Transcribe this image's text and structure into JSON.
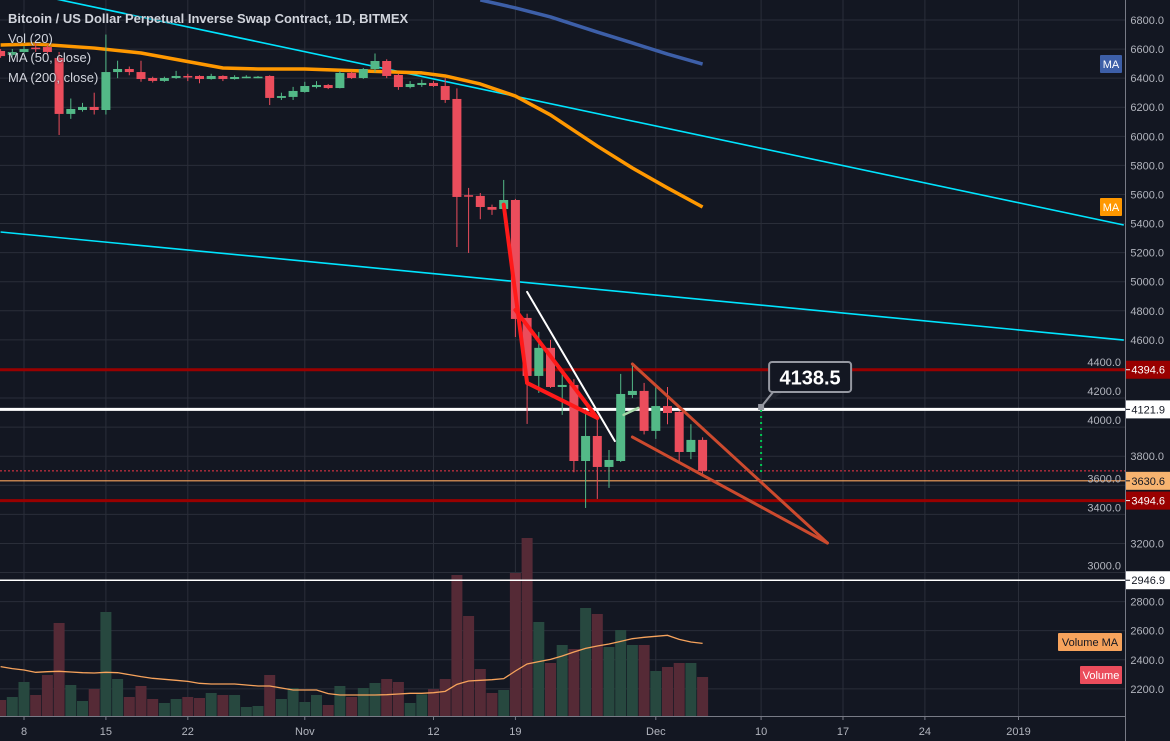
{
  "legend": {
    "title": "Bitcoin / US Dollar Perpetual Inverse Swap Contract, 1D, BITMEX",
    "vol": "Vol (20)",
    "ma50": "MA (50, close)",
    "ma200": "MA (200, close)"
  },
  "badges": {
    "ma200": "MA",
    "ma50": "MA",
    "volume_ma": "Volume MA",
    "volume": "Volume"
  },
  "colors": {
    "background": "#131722",
    "grid": "#2a2e39",
    "up": "#53b987",
    "down": "#eb4d5c",
    "volume_up": "#27483f",
    "volume_down": "#552a36",
    "ma50": "#ff9800",
    "ma200": "#3d5fa8",
    "volume_ma": "#f7a35c",
    "trendline": "#00e5ff",
    "wedge": "#cc4a2e",
    "zigzag": "#ff1a1a",
    "axis_text": "#b2b5be"
  },
  "chart_data": {
    "type": "candlestick",
    "title": "Bitcoin / US Dollar Perpetual Inverse Swap Contract, 1D, BITMEX",
    "ylim": [
      2100,
      6900
    ],
    "y_ticks": [
      "6800.0",
      "6600.0",
      "6400.0",
      "6200.0",
      "6000.0",
      "5800.0",
      "5600.0",
      "5400.0",
      "5200.0",
      "5000.0",
      "4800.0",
      "4600.0",
      "4400.0",
      "4200.0",
      "4000.0",
      "3800.0",
      "3600.0",
      "3400.0",
      "3200.0",
      "3000.0",
      "2800.0",
      "2600.0",
      "2400.0",
      "2200.0"
    ],
    "x_ticks": [
      {
        "date": "2018-10-08",
        "label": "8"
      },
      {
        "date": "2018-10-15",
        "label": "15"
      },
      {
        "date": "2018-10-22",
        "label": "22"
      },
      {
        "date": "2018-11-01",
        "label": "Nov"
      },
      {
        "date": "2018-11-12",
        "label": "12"
      },
      {
        "date": "2018-11-19",
        "label": "19"
      },
      {
        "date": "2018-12-01",
        "label": "Dec"
      },
      {
        "date": "2018-12-10",
        "label": "10"
      },
      {
        "date": "2018-12-17",
        "label": "17"
      },
      {
        "date": "2018-12-24",
        "label": "24"
      },
      {
        "date": "2019-01-01",
        "label": "2019"
      }
    ],
    "grid": true,
    "candle_columns": [
      "date",
      "open",
      "high",
      "low",
      "close",
      "volume_relative"
    ],
    "candles": [
      [
        "2018-10-06",
        6587,
        6600,
        6540,
        6552,
        48
      ],
      [
        "2018-10-07",
        6559,
        6600,
        6545,
        6580,
        57
      ],
      [
        "2018-10-08",
        6580,
        6620,
        6570,
        6600,
        102
      ],
      [
        "2018-10-09",
        6610,
        6640,
        6580,
        6600,
        63
      ],
      [
        "2018-10-10",
        6614,
        6630,
        6560,
        6580,
        123
      ],
      [
        "2018-10-11",
        6539,
        6580,
        6009,
        6154,
        279
      ],
      [
        "2018-10-12",
        6154,
        6260,
        6120,
        6188,
        93
      ],
      [
        "2018-10-13",
        6181,
        6230,
        6170,
        6202,
        45
      ],
      [
        "2018-10-14",
        6202,
        6300,
        6150,
        6181,
        81
      ],
      [
        "2018-10-15",
        6181,
        6700,
        6150,
        6442,
        312
      ],
      [
        "2018-10-16",
        6442,
        6520,
        6400,
        6463,
        111
      ],
      [
        "2018-10-17",
        6463,
        6480,
        6420,
        6442,
        57
      ],
      [
        "2018-10-18",
        6442,
        6520,
        6375,
        6394,
        90
      ],
      [
        "2018-10-19",
        6401,
        6410,
        6370,
        6381,
        51
      ],
      [
        "2018-10-20",
        6381,
        6410,
        6375,
        6401,
        39
      ],
      [
        "2018-10-21",
        6401,
        6450,
        6395,
        6415,
        51
      ],
      [
        "2018-10-22",
        6415,
        6430,
        6380,
        6408,
        57
      ],
      [
        "2018-10-23",
        6415,
        6420,
        6365,
        6394,
        54
      ],
      [
        "2018-10-24",
        6394,
        6430,
        6390,
        6415,
        69
      ],
      [
        "2018-10-25",
        6415,
        6420,
        6380,
        6394,
        63
      ],
      [
        "2018-10-26",
        6394,
        6420,
        6390,
        6408,
        63
      ],
      [
        "2018-10-27",
        6404,
        6420,
        6400,
        6410,
        27
      ],
      [
        "2018-10-28",
        6404,
        6415,
        6400,
        6410,
        30
      ],
      [
        "2018-10-29",
        6415,
        6420,
        6215,
        6264,
        123
      ],
      [
        "2018-10-30",
        6264,
        6300,
        6250,
        6277,
        51
      ],
      [
        "2018-10-31",
        6271,
        6340,
        6250,
        6312,
        84
      ],
      [
        "2018-11-01",
        6305,
        6375,
        6300,
        6346,
        42
      ],
      [
        "2018-11-02",
        6339,
        6380,
        6330,
        6353,
        63
      ],
      [
        "2018-11-03",
        6353,
        6360,
        6325,
        6332,
        33
      ],
      [
        "2018-11-04",
        6332,
        6450,
        6330,
        6436,
        90
      ],
      [
        "2018-11-05",
        6436,
        6445,
        6395,
        6401,
        57
      ],
      [
        "2018-11-06",
        6401,
        6470,
        6395,
        6463,
        84
      ],
      [
        "2018-11-07",
        6463,
        6570,
        6440,
        6518,
        99
      ],
      [
        "2018-11-08",
        6518,
        6530,
        6400,
        6415,
        111
      ],
      [
        "2018-11-09",
        6422,
        6430,
        6320,
        6339,
        102
      ],
      [
        "2018-11-10",
        6339,
        6380,
        6330,
        6360,
        39
      ],
      [
        "2018-11-11",
        6353,
        6390,
        6340,
        6367,
        65
      ],
      [
        "2018-11-12",
        6367,
        6380,
        6340,
        6346,
        81
      ],
      [
        "2018-11-13",
        6346,
        6400,
        6230,
        6250,
        111
      ],
      [
        "2018-11-14",
        6257,
        6330,
        5239,
        5583,
        423
      ],
      [
        "2018-11-15",
        5595,
        5645,
        5198,
        5590,
        300
      ],
      [
        "2018-11-16",
        5590,
        5610,
        5430,
        5514,
        141
      ],
      [
        "2018-11-17",
        5514,
        5530,
        5460,
        5495,
        69
      ],
      [
        "2018-11-18",
        5500,
        5700,
        5480,
        5562,
        78
      ],
      [
        "2018-11-19",
        5562,
        5570,
        4620,
        4744,
        429
      ],
      [
        "2018-11-20",
        4751,
        4780,
        4022,
        4352,
        534
      ],
      [
        "2018-11-21",
        4352,
        4655,
        4235,
        4545,
        282
      ],
      [
        "2018-11-22",
        4545,
        4600,
        4270,
        4276,
        159
      ],
      [
        "2018-11-23",
        4276,
        4393,
        4084,
        4290,
        213
      ],
      [
        "2018-11-24",
        4290,
        4330,
        3690,
        3767,
        201
      ],
      [
        "2018-11-25",
        3767,
        4125,
        3444,
        3939,
        324
      ],
      [
        "2018-11-26",
        3939,
        4063,
        3506,
        3726,
        306
      ],
      [
        "2018-11-27",
        3726,
        3843,
        3582,
        3774,
        207
      ],
      [
        "2018-11-28",
        3767,
        4366,
        3760,
        4228,
        258
      ],
      [
        "2018-11-29",
        4221,
        4434,
        4200,
        4249,
        213
      ],
      [
        "2018-11-30",
        4249,
        4304,
        3950,
        3974,
        213
      ],
      [
        "2018-12-01",
        3974,
        4276,
        3919,
        4145,
        135
      ],
      [
        "2018-12-02",
        4145,
        4276,
        4020,
        4097,
        147
      ],
      [
        "2018-12-03",
        4104,
        4110,
        3760,
        3829,
        159
      ],
      [
        "2018-12-04",
        3829,
        4020,
        3780,
        3912,
        159
      ],
      [
        "2018-12-05",
        3912,
        3930,
        3680,
        3699,
        117
      ]
    ],
    "volume_ma": [
      148,
      142,
      138,
      131,
      133,
      134,
      132,
      130,
      129,
      131,
      130,
      124,
      118,
      113,
      110,
      107,
      104,
      98,
      96,
      96,
      96,
      93,
      90,
      90,
      84,
      78,
      78,
      78,
      67,
      63,
      63,
      63,
      63,
      64,
      66,
      68,
      68,
      70,
      74,
      95,
      105,
      107,
      109,
      112,
      135,
      156,
      163,
      170,
      180,
      192,
      203,
      210,
      216,
      224,
      232,
      236,
      239,
      242,
      230,
      222,
      218
    ],
    "ma50": [
      [
        "2018-10-06",
        6628
      ],
      [
        "2018-10-09",
        6635
      ],
      [
        "2018-10-14",
        6607
      ],
      [
        "2018-10-18",
        6573
      ],
      [
        "2018-10-25",
        6470
      ],
      [
        "2018-10-28",
        6463
      ],
      [
        "2018-11-01",
        6463
      ],
      [
        "2018-11-06",
        6449
      ],
      [
        "2018-11-11",
        6436
      ],
      [
        "2018-11-13",
        6415
      ],
      [
        "2018-11-16",
        6360
      ],
      [
        "2018-11-19",
        6277
      ],
      [
        "2018-11-22",
        6147
      ],
      [
        "2018-11-26",
        5933
      ],
      [
        "2018-11-29",
        5782
      ],
      [
        "2018-12-02",
        5645
      ],
      [
        "2018-12-05",
        5514
      ]
    ],
    "ma200": [
      [
        "2018-11-16",
        6938
      ],
      [
        "2018-11-19",
        6883
      ],
      [
        "2018-11-22",
        6821
      ],
      [
        "2018-11-26",
        6717
      ],
      [
        "2018-11-29",
        6642
      ],
      [
        "2018-12-02",
        6566
      ],
      [
        "2018-12-05",
        6497
      ]
    ],
    "horizontal_lines": [
      {
        "price": 4394.6,
        "label": "4394.6",
        "style": "darkred"
      },
      {
        "price": 4121.9,
        "label": "4121.9",
        "style": "white"
      },
      {
        "price": 3630.6,
        "label": "3630.6",
        "style": "orange"
      },
      {
        "price": 3494.6,
        "label": "3494.6",
        "style": "darkred"
      },
      {
        "price": 2946.9,
        "label": "2946.9",
        "style": "white-thin"
      },
      {
        "price": 3699,
        "label": "",
        "style": "dotted-red"
      }
    ],
    "trendlines": [
      {
        "from": [
          "2018-10-06",
          7025
        ],
        "to": [
          "2019-01-10",
          5390
        ],
        "color": "cyan"
      },
      {
        "from": [
          "2018-10-06",
          5342
        ],
        "to": [
          "2019-01-10",
          4599
        ],
        "color": "cyan"
      }
    ],
    "drawings": [
      {
        "kind": "zigzag",
        "from": [
          "2018-11-18",
          5530
        ],
        "to": [
          "2018-11-20",
          4304
        ]
      },
      {
        "kind": "zigzag",
        "from": [
          "2018-11-19",
          4806
        ],
        "to": [
          "2018-11-26",
          4063
        ]
      },
      {
        "kind": "zigzag",
        "from": [
          "2018-11-20",
          4304
        ],
        "to": [
          "2018-11-26",
          4063
        ]
      },
      {
        "kind": "white",
        "from": [
          "2018-11-20",
          4930
        ],
        "to": [
          "2018-11-27T12:00",
          3904
        ]
      },
      {
        "kind": "wedge",
        "from": [
          "2018-11-29",
          4434
        ],
        "to": [
          "2018-12-15T16:00",
          3203
        ]
      },
      {
        "kind": "wedge",
        "from": [
          "2018-11-29",
          3932
        ],
        "to": [
          "2018-12-15T16:00",
          3203
        ]
      },
      {
        "kind": "green",
        "from": [
          "2018-11-28T06:00",
          4084
        ],
        "to": [
          "2018-11-29T12:00",
          4132
        ]
      }
    ],
    "price_callout": {
      "label": "4138.5",
      "date": "2018-12-10",
      "price": 4138.5,
      "dotted_to": 3685
    }
  }
}
